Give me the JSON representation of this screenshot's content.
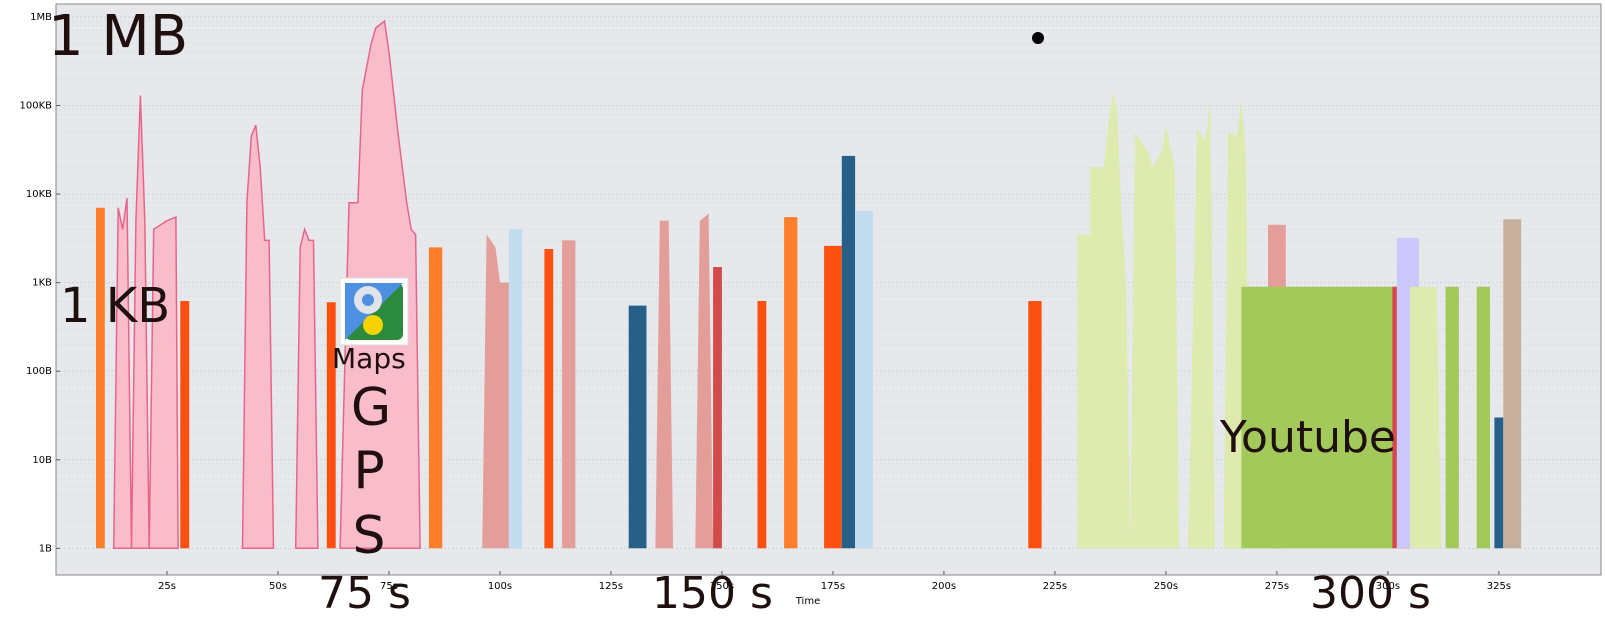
{
  "chart_data": {
    "type": "area",
    "title": "",
    "xlabel": "Time",
    "ylabel": "",
    "yscale": "log",
    "xlim": [
      0,
      348
    ],
    "ylim": [
      0.5,
      1400000
    ],
    "grid": true,
    "x_ticks": [
      "25s",
      "50s",
      "75s",
      "100s",
      "125s",
      "150s",
      "175s",
      "200s",
      "225s",
      "250s",
      "275s",
      "300s",
      "325s"
    ],
    "x_tick_values": [
      25,
      50,
      75,
      100,
      125,
      150,
      175,
      200,
      225,
      250,
      275,
      300,
      325
    ],
    "y_ticks": [
      "1B",
      "10B",
      "100B",
      "1KB",
      "10KB",
      "100KB",
      "1MB"
    ],
    "y_tick_values": [
      1,
      10,
      100,
      1000,
      10000,
      100000,
      1000000
    ],
    "colors": {
      "gps_pink": "#f9bccb",
      "gps_pink_edge": "#e8658a",
      "orange": "#fd7f2b",
      "red_orange": "#fd4f0f",
      "salmon": "#e49e9a",
      "red": "#d24a4a",
      "light_blue": "#9ec8e2",
      "pale_blue": "#c2ddf0",
      "mid_blue": "#2d97d6",
      "dark_blue": "#265f88",
      "yt_green": "#dfeaae",
      "yt_green_dark": "#a2c95a",
      "lavender": "#cdc8fc",
      "tan": "#c6b09b"
    },
    "series": [
      {
        "color": "orange",
        "points": [
          [
            9,
            1
          ],
          [
            9,
            7000
          ],
          [
            11,
            7000
          ],
          [
            11,
            1
          ]
        ]
      },
      {
        "color": "gps_pink",
        "points": [
          [
            13,
            1
          ],
          [
            14,
            7000
          ],
          [
            15,
            4000
          ],
          [
            16,
            9000
          ],
          [
            17,
            1
          ],
          [
            18,
            5000
          ],
          [
            19,
            130000
          ],
          [
            20,
            5000
          ],
          [
            21,
            1
          ],
          [
            22,
            4000
          ],
          [
            25,
            5000
          ],
          [
            27,
            5500
          ],
          [
            27.5,
            1
          ]
        ]
      },
      {
        "color": "red_orange",
        "points": [
          [
            28,
            1
          ],
          [
            28,
            620
          ],
          [
            30,
            620
          ],
          [
            30,
            1
          ]
        ]
      },
      {
        "color": "gps_pink",
        "points": [
          [
            42,
            1
          ],
          [
            43,
            8000
          ],
          [
            44,
            45000
          ],
          [
            45,
            60000
          ],
          [
            46,
            20000
          ],
          [
            47,
            3000
          ],
          [
            48,
            3000
          ],
          [
            49,
            1
          ]
        ]
      },
      {
        "color": "gps_pink",
        "points": [
          [
            54,
            1
          ],
          [
            55,
            2500
          ],
          [
            56,
            4000
          ],
          [
            57,
            3000
          ],
          [
            58,
            3000
          ],
          [
            59,
            1
          ]
        ]
      },
      {
        "color": "red_orange",
        "points": [
          [
            61,
            1
          ],
          [
            61,
            600
          ],
          [
            63,
            600
          ],
          [
            63,
            1
          ]
        ]
      },
      {
        "color": "gps_pink",
        "points": [
          [
            64,
            1
          ],
          [
            66,
            8000
          ],
          [
            68,
            8000
          ],
          [
            69,
            150000
          ],
          [
            71,
            500000
          ],
          [
            72,
            750000
          ],
          [
            74,
            900000
          ],
          [
            75,
            400000
          ],
          [
            77,
            50000
          ],
          [
            79,
            8000
          ],
          [
            80,
            4000
          ],
          [
            81,
            3500
          ],
          [
            82,
            1
          ]
        ]
      },
      {
        "color": "orange",
        "points": [
          [
            84,
            1
          ],
          [
            84,
            2500
          ],
          [
            87,
            2500
          ],
          [
            87,
            1
          ]
        ]
      },
      {
        "color": "salmon",
        "points": [
          [
            96,
            1
          ],
          [
            97,
            3500
          ],
          [
            99,
            2500
          ],
          [
            100,
            1000
          ],
          [
            102,
            1000
          ],
          [
            103,
            1
          ]
        ]
      },
      {
        "color": "pale_blue",
        "points": [
          [
            102,
            1
          ],
          [
            102,
            4000
          ],
          [
            105,
            4000
          ],
          [
            105,
            1
          ]
        ]
      },
      {
        "color": "red_orange",
        "points": [
          [
            110,
            1
          ],
          [
            110,
            2400
          ],
          [
            112,
            2400
          ],
          [
            112,
            1
          ]
        ]
      },
      {
        "color": "salmon",
        "points": [
          [
            114,
            1
          ],
          [
            114,
            3000
          ],
          [
            117,
            3000
          ],
          [
            117,
            1
          ]
        ]
      },
      {
        "color": "dark_blue",
        "points": [
          [
            129,
            1
          ],
          [
            129,
            550
          ],
          [
            133,
            550
          ],
          [
            133,
            1
          ]
        ]
      },
      {
        "color": "salmon",
        "points": [
          [
            135,
            1
          ],
          [
            136,
            5000
          ],
          [
            138,
            5000
          ],
          [
            139,
            1
          ]
        ]
      },
      {
        "color": "salmon",
        "points": [
          [
            144,
            1
          ],
          [
            145,
            5000
          ],
          [
            147,
            6000
          ],
          [
            148,
            1
          ]
        ]
      },
      {
        "color": "red",
        "points": [
          [
            148,
            1
          ],
          [
            148,
            1500
          ],
          [
            150,
            1500
          ],
          [
            150,
            1
          ]
        ]
      },
      {
        "color": "red_orange",
        "points": [
          [
            158,
            1
          ],
          [
            158,
            620
          ],
          [
            160,
            620
          ],
          [
            160,
            1
          ]
        ]
      },
      {
        "color": "orange",
        "points": [
          [
            164,
            1
          ],
          [
            164,
            5500
          ],
          [
            167,
            5500
          ],
          [
            167,
            1
          ]
        ]
      },
      {
        "color": "red_orange",
        "points": [
          [
            173,
            1
          ],
          [
            173,
            2600
          ],
          [
            177,
            2600
          ],
          [
            177,
            1
          ]
        ]
      },
      {
        "color": "dark_blue",
        "points": [
          [
            177,
            1
          ],
          [
            177,
            27000
          ],
          [
            180,
            27000
          ],
          [
            180,
            1
          ]
        ]
      },
      {
        "color": "pale_blue",
        "points": [
          [
            180,
            1
          ],
          [
            180,
            6500
          ],
          [
            184,
            6500
          ],
          [
            184,
            1
          ]
        ]
      },
      {
        "color": "red_orange",
        "points": [
          [
            219,
            1
          ],
          [
            219,
            620
          ],
          [
            222,
            620
          ],
          [
            222,
            1
          ]
        ]
      },
      {
        "color": "yt_green",
        "points": [
          [
            230,
            1
          ],
          [
            230,
            3500
          ],
          [
            233,
            3500
          ],
          [
            233,
            20000
          ],
          [
            236,
            20000
          ],
          [
            237,
            60000
          ],
          [
            238,
            140000
          ],
          [
            239,
            90000
          ],
          [
            240,
            6000
          ],
          [
            241,
            1000
          ],
          [
            242,
            1
          ]
        ]
      },
      {
        "color": "yt_green",
        "points": [
          [
            242,
            1
          ],
          [
            243,
            50000
          ],
          [
            246,
            30000
          ],
          [
            247,
            20000
          ],
          [
            249,
            30000
          ],
          [
            250,
            60000
          ],
          [
            252,
            20000
          ],
          [
            253,
            1
          ]
        ]
      },
      {
        "color": "yt_green",
        "points": [
          [
            255,
            1
          ],
          [
            257,
            55000
          ],
          [
            259,
            40000
          ],
          [
            260,
            120000
          ],
          [
            261,
            1
          ]
        ]
      },
      {
        "color": "yt_green",
        "points": [
          [
            263,
            1
          ],
          [
            264,
            50000
          ],
          [
            266,
            45000
          ],
          [
            267,
            120000
          ],
          [
            268,
            30000
          ],
          [
            269,
            1
          ]
        ]
      },
      {
        "color": "salmon",
        "points": [
          [
            273,
            1
          ],
          [
            273,
            4500
          ],
          [
            277,
            4500
          ],
          [
            277,
            1
          ]
        ]
      },
      {
        "color": "yt_green_dark",
        "points": [
          [
            267,
            1
          ],
          [
            267,
            900
          ],
          [
            301,
            900
          ],
          [
            301,
            1
          ]
        ]
      },
      {
        "color": "red",
        "points": [
          [
            301,
            1
          ],
          [
            301,
            900
          ],
          [
            305,
            900
          ],
          [
            305,
            1
          ]
        ]
      },
      {
        "color": "lavender",
        "points": [
          [
            302,
            1
          ],
          [
            302,
            3200
          ],
          [
            307,
            3200
          ],
          [
            307,
            1
          ]
        ]
      },
      {
        "color": "yt_green",
        "points": [
          [
            305,
            1
          ],
          [
            305,
            900
          ],
          [
            311,
            900
          ],
          [
            312,
            1
          ]
        ]
      },
      {
        "color": "yt_green_dark",
        "points": [
          [
            313,
            1
          ],
          [
            313,
            900
          ],
          [
            316,
            900
          ],
          [
            316,
            1
          ]
        ]
      },
      {
        "color": "yt_green_dark",
        "points": [
          [
            320,
            1
          ],
          [
            320,
            900
          ],
          [
            323,
            900
          ],
          [
            323,
            1
          ]
        ]
      },
      {
        "color": "dark_blue",
        "points": [
          [
            324,
            1
          ],
          [
            324,
            30
          ],
          [
            326,
            30
          ],
          [
            326,
            1
          ]
        ]
      },
      {
        "color": "tan",
        "points": [
          [
            326,
            1
          ],
          [
            326,
            5200
          ],
          [
            330,
            5200
          ],
          [
            330,
            1
          ]
        ]
      }
    ],
    "annotations": {
      "top_left": "1 MB",
      "mid_left": "1 KB",
      "maps": "Maps",
      "gps": [
        "G",
        "P",
        "S"
      ],
      "youtube": "Youtube",
      "t75": "75 s",
      "t150": "150 s",
      "t300": "300 s"
    }
  }
}
